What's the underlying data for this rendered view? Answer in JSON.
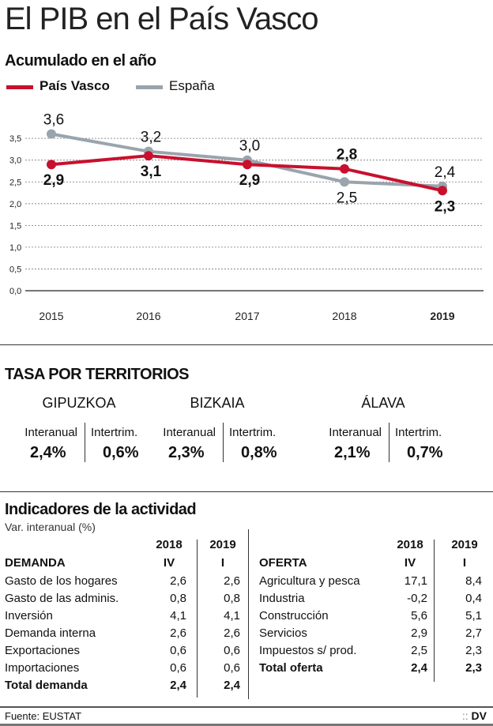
{
  "title": "El PIB en el País Vasco",
  "chart_data": {
    "type": "line",
    "title": "Acumulado en el año",
    "categories": [
      "2015",
      "2016",
      "2017",
      "2018",
      "2019"
    ],
    "series": [
      {
        "name": "País Vasco",
        "color": "#c8102e",
        "values": [
          2.9,
          3.1,
          2.9,
          2.8,
          2.3
        ],
        "labels": [
          "2,9",
          "3,1",
          "2,9",
          "2,8",
          "2,3"
        ]
      },
      {
        "name": "España",
        "color": "#9aa4ad",
        "values": [
          3.6,
          3.2,
          3.0,
          2.5,
          2.4
        ],
        "labels": [
          "3,6",
          "3,2",
          "3,0",
          "2,5",
          "2,4"
        ]
      }
    ],
    "ylim": [
      0,
      3.5
    ],
    "yticks": [
      "0,0",
      "0,5",
      "1,0",
      "1,5",
      "2,0",
      "2,5",
      "3,0",
      "3,5"
    ],
    "grid": true,
    "legend": "top-left"
  },
  "tasa": {
    "title": "TASA POR TERRITORIOS",
    "interanual_label": "Interanual",
    "intertrim_label": "Intertrim.",
    "regions": [
      {
        "name": "GIPUZKOA",
        "interanual": "2,4%",
        "intertrim": "0,6%"
      },
      {
        "name": "BIZKAIA",
        "interanual": "2,3%",
        "intertrim": "0,8%"
      },
      {
        "name": "ÁLAVA",
        "interanual": "2,1%",
        "intertrim": "0,7%"
      }
    ]
  },
  "indicadores": {
    "title": "Indicadores de la actividad",
    "subtitle": "Var. interanual (%)",
    "col_years": [
      "2018",
      "2019"
    ],
    "col_quarters": [
      "IV",
      "I"
    ],
    "demanda": {
      "header": "DEMANDA",
      "rows": [
        {
          "label": "Gasto de los hogares",
          "v2018": "2,6",
          "v2019": "2,6"
        },
        {
          "label": "Gasto de las adminis.",
          "v2018": "0,8",
          "v2019": "0,8"
        },
        {
          "label": "Inversión",
          "v2018": "4,1",
          "v2019": "4,1"
        },
        {
          "label": "Demanda interna",
          "v2018": "2,6",
          "v2019": "2,6"
        },
        {
          "label": "Exportaciones",
          "v2018": "0,6",
          "v2019": "0,6"
        },
        {
          "label": "Importaciones",
          "v2018": "0,6",
          "v2019": "0,6"
        },
        {
          "label": "Total demanda",
          "v2018": "2,4",
          "v2019": "2,4",
          "bold": true
        }
      ]
    },
    "oferta": {
      "header": "OFERTA",
      "rows": [
        {
          "label": "Agricultura y pesca",
          "v2018": "17,1",
          "v2019": "8,4"
        },
        {
          "label": "Industria",
          "v2018": "-0,2",
          "v2019": "0,4"
        },
        {
          "label": "Construcción",
          "v2018": "5,6",
          "v2019": "5,1"
        },
        {
          "label": "Servicios",
          "v2018": "2,9",
          "v2019": "2,7"
        },
        {
          "label": "Impuestos s/ prod.",
          "v2018": "2,5",
          "v2019": "2,3"
        },
        {
          "label": "Total oferta",
          "v2018": "2,4",
          "v2019": "2,3",
          "bold": true
        }
      ]
    }
  },
  "footer": {
    "source": "Fuente: EUSTAT",
    "logo": "DV"
  }
}
